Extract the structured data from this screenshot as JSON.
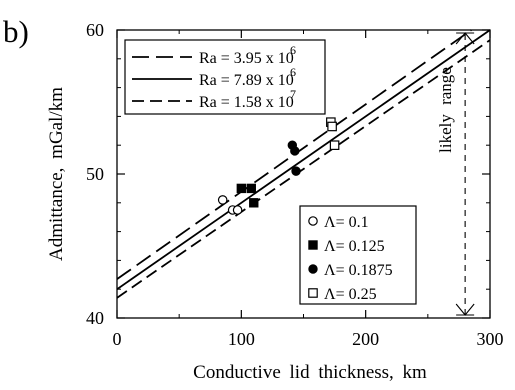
{
  "panel_label": "b)",
  "chart_data": {
    "type": "scatter",
    "title": "",
    "xlabel": "Conductive lid thickness, km",
    "ylabel": "Admittance, mGal/km",
    "xlim": [
      0,
      300
    ],
    "ylim": [
      40,
      60
    ],
    "x_ticks": [
      0,
      100,
      200,
      300
    ],
    "y_ticks": [
      40,
      50,
      60
    ],
    "x_tick_labels": [
      "0",
      "100",
      "200",
      "300"
    ],
    "y_tick_labels": [
      "40",
      "50",
      "60"
    ],
    "grid": false,
    "lines": [
      {
        "label_text": "Ra = 3.95 x 10",
        "exponent": "6",
        "dash": "long",
        "x": [
          0,
          285
        ],
        "y": [
          42.7,
          60.0
        ]
      },
      {
        "label_text": "Ra = 7.89 x 10",
        "exponent": "6",
        "dash": "solid",
        "x": [
          0,
          300
        ],
        "y": [
          42.0,
          60.0
        ]
      },
      {
        "label_text": "Ra = 1.58 x 10",
        "exponent": "7",
        "dash": "medium",
        "x": [
          0,
          300
        ],
        "y": [
          41.4,
          59.3
        ]
      }
    ],
    "series": [
      {
        "name": "Λ= 0.1",
        "marker": "open-circle",
        "x": [
          85,
          93,
          97
        ],
        "y": [
          48.2,
          47.5,
          47.5
        ]
      },
      {
        "name": "Λ= 0.125",
        "marker": "filled-square",
        "x": [
          100,
          108,
          110
        ],
        "y": [
          49.0,
          49.0,
          48.0
        ]
      },
      {
        "name": "Λ= 0.1875",
        "marker": "filled-circle",
        "x": [
          141,
          143,
          144
        ],
        "y": [
          52.0,
          51.6,
          50.2
        ]
      },
      {
        "name": "Λ= 0.25",
        "marker": "open-square",
        "x": [
          172,
          173,
          175
        ],
        "y": [
          53.6,
          53.3,
          52.0
        ]
      }
    ],
    "annotation": {
      "text": "likely range",
      "x": 280,
      "y_range": [
        40,
        60
      ]
    },
    "legend_placement": "top-left (lines), bottom-right (markers)"
  }
}
